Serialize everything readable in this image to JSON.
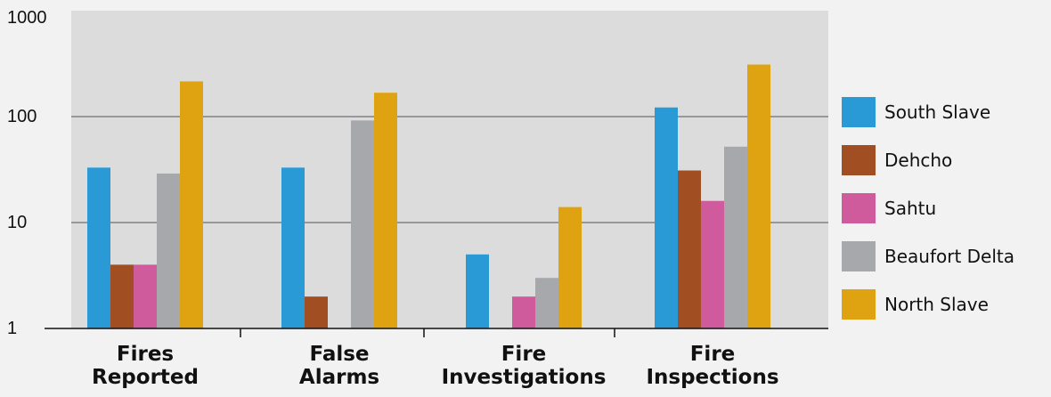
{
  "chart_data": {
    "type": "bar",
    "scale": "log",
    "ylim": [
      1,
      1000
    ],
    "yticks": [
      {
        "value": 1,
        "label": "1"
      },
      {
        "value": 10,
        "label": "10"
      },
      {
        "value": 100,
        "label": "100"
      },
      {
        "value": 1000,
        "label": "1000"
      }
    ],
    "grid": true,
    "legend_position": "right",
    "categories": [
      [
        "Fires",
        "Reported"
      ],
      [
        "False",
        "Alarms"
      ],
      [
        "Fire",
        "Investigations"
      ],
      [
        "Fire",
        "Inspections"
      ]
    ],
    "series": [
      {
        "name": "South Slave",
        "color": "#2a9ad6",
        "values": [
          33,
          33,
          5,
          122
        ]
      },
      {
        "name": "Dehcho",
        "color": "#a14e22",
        "values": [
          4,
          2,
          null,
          31
        ]
      },
      {
        "name": "Sahtu",
        "color": "#cf5a9c",
        "values": [
          4,
          null,
          2,
          16
        ]
      },
      {
        "name": "Beaufort Delta",
        "color": "#a7a8ac",
        "values": [
          29,
          92,
          3,
          52
        ]
      },
      {
        "name": "North Slave",
        "color": "#dfa312",
        "values": [
          215,
          168,
          14,
          310
        ]
      }
    ]
  }
}
